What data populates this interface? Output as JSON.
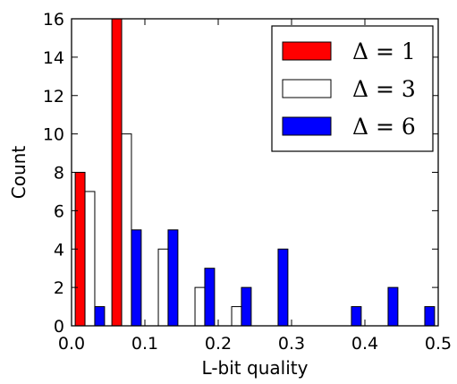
{
  "chart_data": {
    "type": "bar",
    "title": "",
    "xlabel": "L-bit quality",
    "ylabel": "Count",
    "xlim": [
      0.0,
      0.5
    ],
    "ylim": [
      0,
      16
    ],
    "xticks": [
      "0.0",
      "0.1",
      "0.2",
      "0.3",
      "0.4",
      "0.5"
    ],
    "yticks": [
      "0",
      "2",
      "4",
      "6",
      "8",
      "10",
      "12",
      "14",
      "16"
    ],
    "grid": false,
    "legend_position": "top-right",
    "bin_edges": [
      0.0,
      0.05,
      0.1,
      0.15,
      0.2,
      0.25,
      0.3,
      0.35,
      0.4,
      0.45,
      0.5
    ],
    "series": [
      {
        "name": "Δ = 1",
        "color": "#ff0000",
        "values": [
          8,
          16,
          0,
          0,
          0,
          0,
          0,
          0,
          0,
          0
        ]
      },
      {
        "name": "Δ = 3",
        "color": "#ffffff",
        "values": [
          7,
          10,
          4,
          2,
          1,
          0,
          0,
          0,
          0,
          0
        ]
      },
      {
        "name": "Δ = 6",
        "color": "#0000ff",
        "values": [
          1,
          5,
          5,
          3,
          2,
          4,
          0,
          1,
          2,
          1
        ]
      }
    ]
  }
}
